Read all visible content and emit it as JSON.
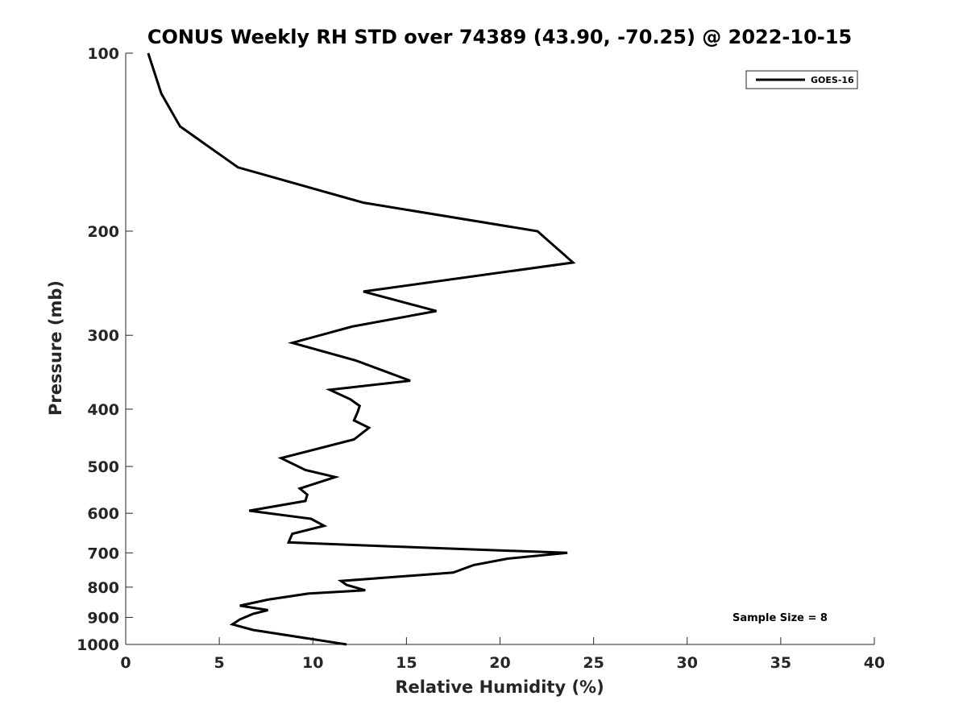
{
  "chart_data": {
    "type": "line",
    "title": "CONUS Weekly RH STD over 74389 (43.90, -70.25) @ 2022-10-15",
    "xlabel": "Relative Humidity (%)",
    "ylabel": "Pressure (mb)",
    "xlim": [
      0,
      40
    ],
    "ylim": [
      100,
      1000
    ],
    "y_scale": "log",
    "y_reversed": true,
    "x_ticks": [
      0,
      5,
      10,
      15,
      20,
      25,
      30,
      35,
      40
    ],
    "y_ticks": [
      100,
      200,
      300,
      400,
      500,
      600,
      700,
      800,
      900,
      1000
    ],
    "grid": false,
    "legend_position": "top-right",
    "series": [
      {
        "name": "GOES-16",
        "color": "#000000",
        "x": [
          1.2,
          1.9,
          2.9,
          6.0,
          12.7,
          22.0,
          23.9,
          12.7,
          16.6,
          12.1,
          8.9,
          12.3,
          15.2,
          10.9,
          12.0,
          12.5,
          12.4,
          12.2,
          13.0,
          12.2,
          8.3,
          9.6,
          11.2,
          9.3,
          9.7,
          9.6,
          6.6,
          9.9,
          10.6,
          8.9,
          8.7,
          14.4,
          23.6,
          20.4,
          18.6,
          17.5,
          11.5,
          11.8,
          12.8,
          9.8,
          7.6,
          6.1,
          7.6,
          6.8,
          6.1,
          5.7,
          6.8,
          11.8
        ],
        "y": [
          100,
          117,
          133,
          156,
          179,
          200,
          226,
          253,
          273,
          290,
          309,
          331,
          358,
          371,
          385,
          395,
          404,
          418,
          430,
          450,
          484,
          507,
          521,
          545,
          558,
          572,
          594,
          613,
          630,
          650,
          672,
          683,
          700,
          716,
          734,
          756,
          781,
          793,
          810,
          820,
          840,
          860,
          875,
          888,
          907,
          925,
          945,
          1000
        ]
      }
    ],
    "annotations": [
      "Sample Size = 8"
    ]
  }
}
